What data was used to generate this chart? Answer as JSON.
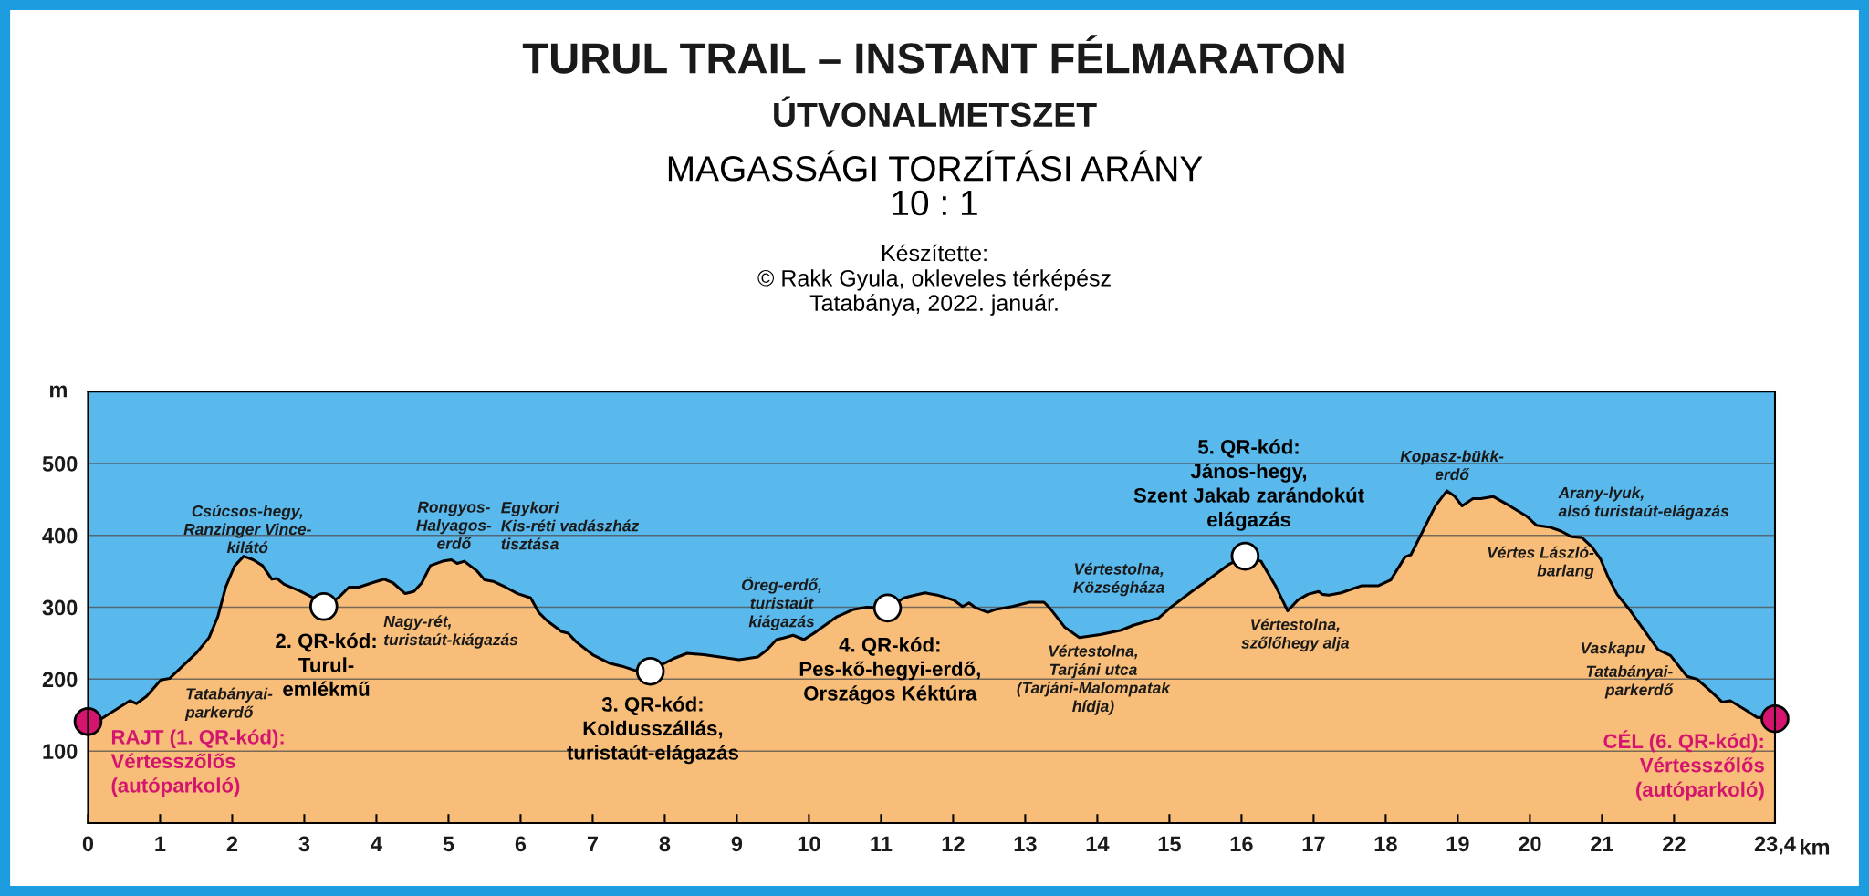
{
  "chart_data": {
    "type": "area",
    "title": "TURUL TRAIL – INSTANT FÉLMARATON",
    "subtitle": "ÚTVONALMETSZET",
    "xlabel": "km",
    "ylabel": "m",
    "xlim": [
      0,
      23.4
    ],
    "ylim": [
      0,
      600
    ],
    "xticks": [
      0,
      1,
      2,
      3,
      4,
      5,
      6,
      7,
      8,
      9,
      10,
      11,
      12,
      13,
      14,
      15,
      16,
      17,
      18,
      19,
      20,
      21,
      22,
      {
        "value": 23.4,
        "label": "23,4"
      }
    ],
    "yticks": [
      100,
      200,
      300,
      400,
      500
    ],
    "grid": "y",
    "series": [
      {
        "color": "#f8bd78",
        "x": [
          0,
          0.17,
          0.58,
          0.67,
          0.81,
          1.01,
          1.13,
          1.33,
          1.5,
          1.68,
          1.8,
          1.91,
          2.03,
          2.16,
          2.29,
          2.42,
          2.55,
          2.62,
          2.72,
          2.95,
          3.13,
          3.27,
          3.47,
          3.62,
          3.76,
          3.94,
          4.11,
          4.23,
          4.4,
          4.52,
          4.63,
          4.75,
          4.92,
          5.04,
          5.12,
          5.22,
          5.39,
          5.5,
          5.62,
          5.79,
          5.96,
          6.14,
          6.25,
          6.37,
          6.57,
          6.66,
          6.77,
          7.0,
          7.24,
          7.41,
          7.59,
          7.8,
          7.99,
          8.13,
          8.31,
          8.54,
          8.83,
          9.03,
          9.29,
          9.41,
          9.55,
          9.67,
          9.78,
          9.93,
          10.1,
          10.39,
          10.62,
          10.8,
          11.09,
          11.32,
          11.43,
          11.61,
          11.78,
          12.01,
          12.13,
          12.22,
          12.3,
          12.48,
          12.59,
          12.82,
          13.06,
          13.26,
          13.34,
          13.55,
          13.75,
          14.04,
          14.33,
          14.5,
          14.85,
          15.02,
          15.31,
          15.48,
          15.83,
          16.05,
          16.27,
          16.47,
          16.64,
          16.78,
          16.92,
          17.07,
          17.12,
          17.21,
          17.38,
          17.67,
          17.9,
          18.07,
          18.27,
          18.35,
          18.52,
          18.69,
          18.85,
          18.95,
          19.06,
          19.21,
          19.32,
          19.49,
          19.72,
          19.95,
          20.09,
          20.29,
          20.43,
          20.58,
          20.72,
          20.86,
          20.98,
          21.09,
          21.21,
          21.38,
          21.55,
          21.78,
          21.95,
          22.18,
          22.32,
          22.5,
          22.67,
          22.78,
          22.98,
          23.15,
          23.4
        ],
        "values": [
          141,
          144,
          170,
          166,
          176,
          199,
          201,
          220,
          236,
          258,
          287,
          328,
          357,
          371,
          366,
          358,
          339,
          340,
          332,
          322,
          313,
          301,
          313,
          328,
          328,
          334,
          339,
          334,
          319,
          322,
          334,
          358,
          364,
          366,
          361,
          364,
          351,
          338,
          336,
          328,
          319,
          313,
          293,
          281,
          266,
          264,
          252,
          234,
          222,
          218,
          212,
          211,
          222,
          229,
          236,
          234,
          230,
          227,
          231,
          240,
          255,
          258,
          261,
          255,
          266,
          287,
          297,
          300,
          299,
          313,
          316,
          320,
          317,
          310,
          301,
          306,
          300,
          293,
          297,
          301,
          307,
          307,
          299,
          272,
          258,
          262,
          268,
          275,
          285,
          300,
          322,
          334,
          360,
          371,
          364,
          330,
          295,
          310,
          318,
          322,
          318,
          317,
          320,
          330,
          330,
          338,
          370,
          373,
          407,
          441,
          462,
          455,
          441,
          451,
          451,
          454,
          441,
          427,
          414,
          411,
          406,
          398,
          397,
          384,
          367,
          341,
          318,
          297,
          273,
          241,
          233,
          204,
          200,
          184,
          168,
          170,
          158,
          147,
          145
        ]
      },
      {
        "type": "scatter",
        "color": "#ffffff",
        "marker": "circle",
        "x": [
          3.27,
          7.8,
          11.09,
          16.05
        ],
        "values": [
          301,
          211,
          299,
          371
        ]
      },
      {
        "type": "scatter",
        "color": "#d4146f",
        "marker": "circle",
        "x": [
          0,
          23.4
        ],
        "values": [
          141,
          145
        ]
      }
    ],
    "annotations": [
      "MAGASSÁGI TORZÍTÁSI ARÁNY\n10 : 1",
      "Készítette:\n© Rakk Gyula, okleveles térképész\nTatabánya, 2022. január.",
      {
        "text": "RAJT (1. QR-kód):\nVértesszőlős\n(autóparkoló)",
        "x": 0,
        "y": 141
      },
      {
        "text": "2. QR-kód:\nTurul-\nemlékmű",
        "x": 3.27,
        "y": 301
      },
      {
        "text": "Csúcsos-hegy,\nRanzinger Vince-\nkilátó",
        "x": 2.16,
        "y": 371
      },
      {
        "text": "Tatabányai-\nparkerdő",
        "x": 1.35,
        "y": 220
      },
      {
        "text": "Nagy-rét,\nturistaút-kiágazás",
        "x": 4.45,
        "y": 319
      },
      {
        "text": "Rongyos-\nHalyagos-\nerdő",
        "x": 5.04,
        "y": 366
      },
      {
        "text": "Egykori\nKis-réti vadászház\ntisztása",
        "x": 5.62,
        "y": 336
      },
      {
        "text": "3. QR-kód:\nKoldusszállás,\nturistaút-elágazás",
        "x": 7.8,
        "y": 211
      },
      {
        "text": "Öreg-erdő,\nturistaút\nkiágazás",
        "x": 9.78,
        "y": 261
      },
      {
        "text": "4. QR-kód:\nPes-kő-hegyi-erdő,\nOrszágos Kéktúra",
        "x": 11.09,
        "y": 299
      },
      {
        "text": "Vértestolna,\nTarjáni utca\n(Tarjáni-Malompatak\nhídja)",
        "x": 13.75,
        "y": 258
      },
      {
        "text": "Vértestolna,\nKözségháza",
        "x": 14.3,
        "y": 268
      },
      {
        "text": "5. QR-kód:\nJános-hegy,\nSzent Jakab zarándokút\nelágazás",
        "x": 16.05,
        "y": 371
      },
      {
        "text": "Vértestolna,\nszőlőhegy alja",
        "x": 16.64,
        "y": 295
      },
      {
        "text": "Kopasz-bükk-\nerdő",
        "x": 18.85,
        "y": 462
      },
      {
        "text": "Arany-lyuk,\nalsó turistaút-elágazás",
        "x": 20.29,
        "y": 411
      },
      {
        "text": "Vértes László-\nbarlang",
        "x": 20.98,
        "y": 367
      },
      {
        "text": "Vaskapu",
        "x": 21.7,
        "y": 252
      },
      {
        "text": "Tatabányai-\nparkerdő",
        "x": 22.32,
        "y": 200
      },
      {
        "text": "CÉL (6. QR-kód):\nVértesszőlős\n(autóparkoló)",
        "x": 23.4,
        "y": 145
      }
    ]
  }
}
